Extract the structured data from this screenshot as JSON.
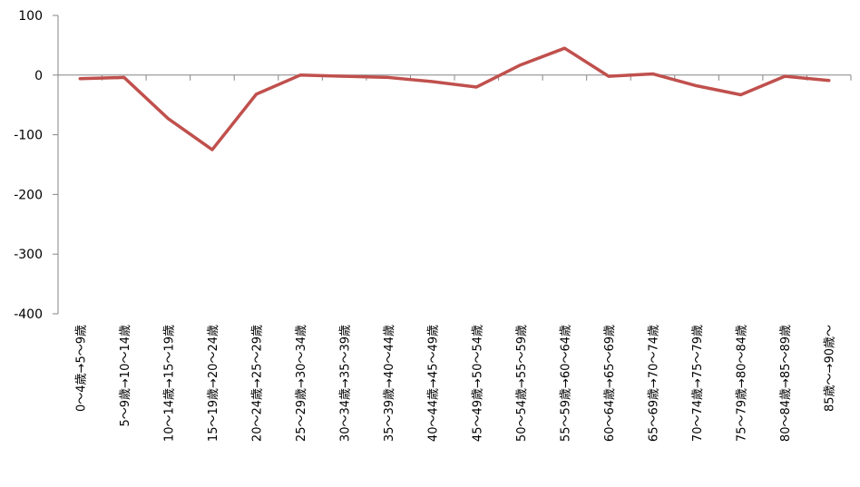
{
  "chart_data": {
    "type": "line",
    "title": "",
    "xlabel": "",
    "ylabel": "",
    "ylim": [
      -400,
      100
    ],
    "yticks": [
      100,
      0,
      -100,
      -200,
      -300,
      -400
    ],
    "grid": false,
    "legend": "none",
    "categories": [
      "0～4歳→5～9歳",
      "5～9歳→10～14歳",
      "10～14歳→15～19歳",
      "15～19歳→20～24歳",
      "20～24歳→25～29歳",
      "25～29歳→30～34歳",
      "30～34歳→35～39歳",
      "35～39歳→40～44歳",
      "40～44歳→45～49歳",
      "45～49歳→50～54歳",
      "50～54歳→55～59歳",
      "55～59歳→60～64歳",
      "60～64歳→65～69歳",
      "65～69歳→70～74歳",
      "70～74歳→75～79歳",
      "75～79歳→80～84歳",
      "80～84歳→85～89歳",
      "85歳～→90歳～"
    ],
    "series": [
      {
        "color": "#c0504d",
        "values": [
          -6,
          -4,
          -73,
          -125,
          -32,
          0,
          -2,
          -4,
          -11,
          -20,
          17,
          45,
          -2,
          2,
          -18,
          -33,
          -2,
          -9
        ]
      }
    ]
  }
}
